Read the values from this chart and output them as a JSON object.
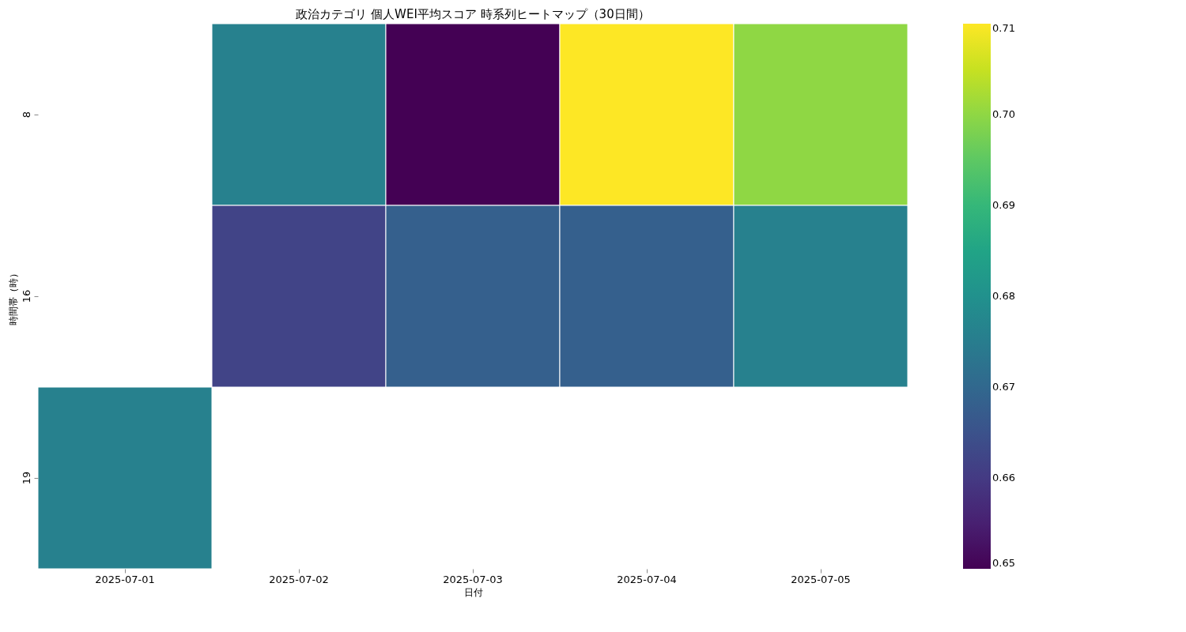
{
  "chart_data": {
    "type": "heatmap",
    "title": "政治カテゴリ 個人WEI平均スコア 時系列ヒートマップ（30日間）",
    "xlabel": "日付",
    "ylabel": "時間帯（時）",
    "categories": [
      "2025-07-01",
      "2025-07-02",
      "2025-07-03",
      "2025-07-04",
      "2025-07-05"
    ],
    "y_categories": [
      "8",
      "16",
      "19"
    ],
    "cells": [
      [
        null,
        0.676,
        0.65,
        0.71,
        0.7
      ],
      [
        null,
        0.662,
        0.668,
        0.668,
        0.676
      ],
      [
        0.676,
        null,
        null,
        null,
        null
      ]
    ],
    "clim": [
      0.65,
      0.71
    ],
    "cticks": [
      0.65,
      0.66,
      0.67,
      0.68,
      0.69,
      {
        "value": 0.7,
        "label": "0.70"
      },
      0.71
    ]
  }
}
